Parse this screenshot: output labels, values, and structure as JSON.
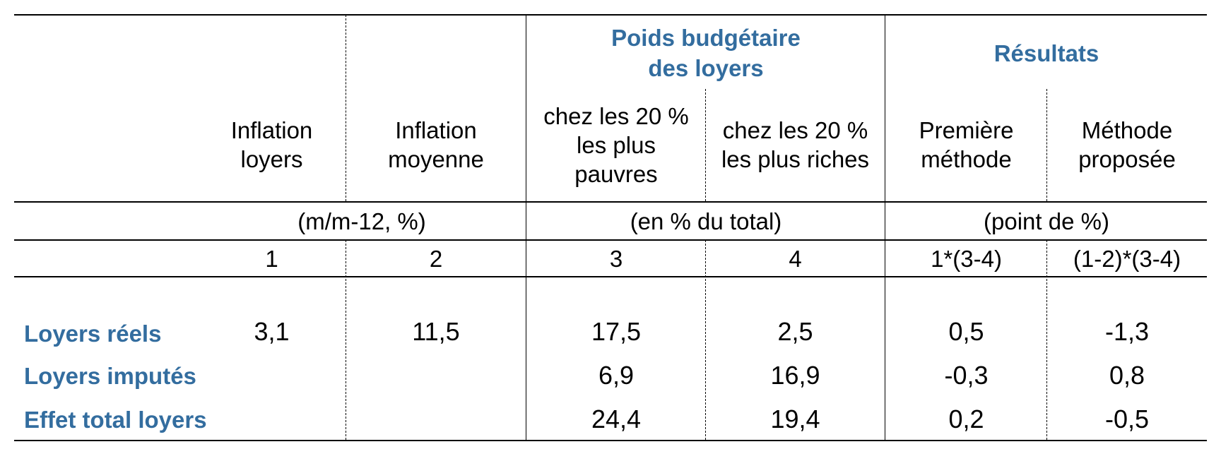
{
  "group_headers": {
    "poids": "Poids  budgétaire\ndes loyers",
    "resultats": "Résultats"
  },
  "columns": [
    {
      "header": "Inflation\nloyers",
      "number": "1"
    },
    {
      "header": "Inflation\nmoyenne",
      "number": "2"
    },
    {
      "header": "chez les 20 %\nles plus\npauvres",
      "number": "3"
    },
    {
      "header": "chez les 20 %\nles plus riches",
      "number": "4"
    },
    {
      "header": "Première\nméthode",
      "number": "1*(3-4)"
    },
    {
      "header": "Méthode\nproposée",
      "number": "(1-2)*(3-4)"
    }
  ],
  "units": {
    "inflation": "(m/m-12, %)",
    "poids": "(en % du total)",
    "resultats": "(point de %)"
  },
  "rows": [
    {
      "label": "Loyers réels",
      "values": [
        "3,1",
        "11,5",
        "17,5",
        "2,5",
        "0,5",
        "-1,3"
      ]
    },
    {
      "label": "Loyers imputés",
      "values": [
        "",
        "",
        "6,9",
        "16,9",
        "-0,3",
        "0,8"
      ]
    },
    {
      "label": "Effet total loyers",
      "values": [
        "",
        "",
        "24,4",
        "19,4",
        "0,2",
        "-0,5"
      ]
    }
  ],
  "colors": {
    "header_blue": "#336d9f"
  }
}
